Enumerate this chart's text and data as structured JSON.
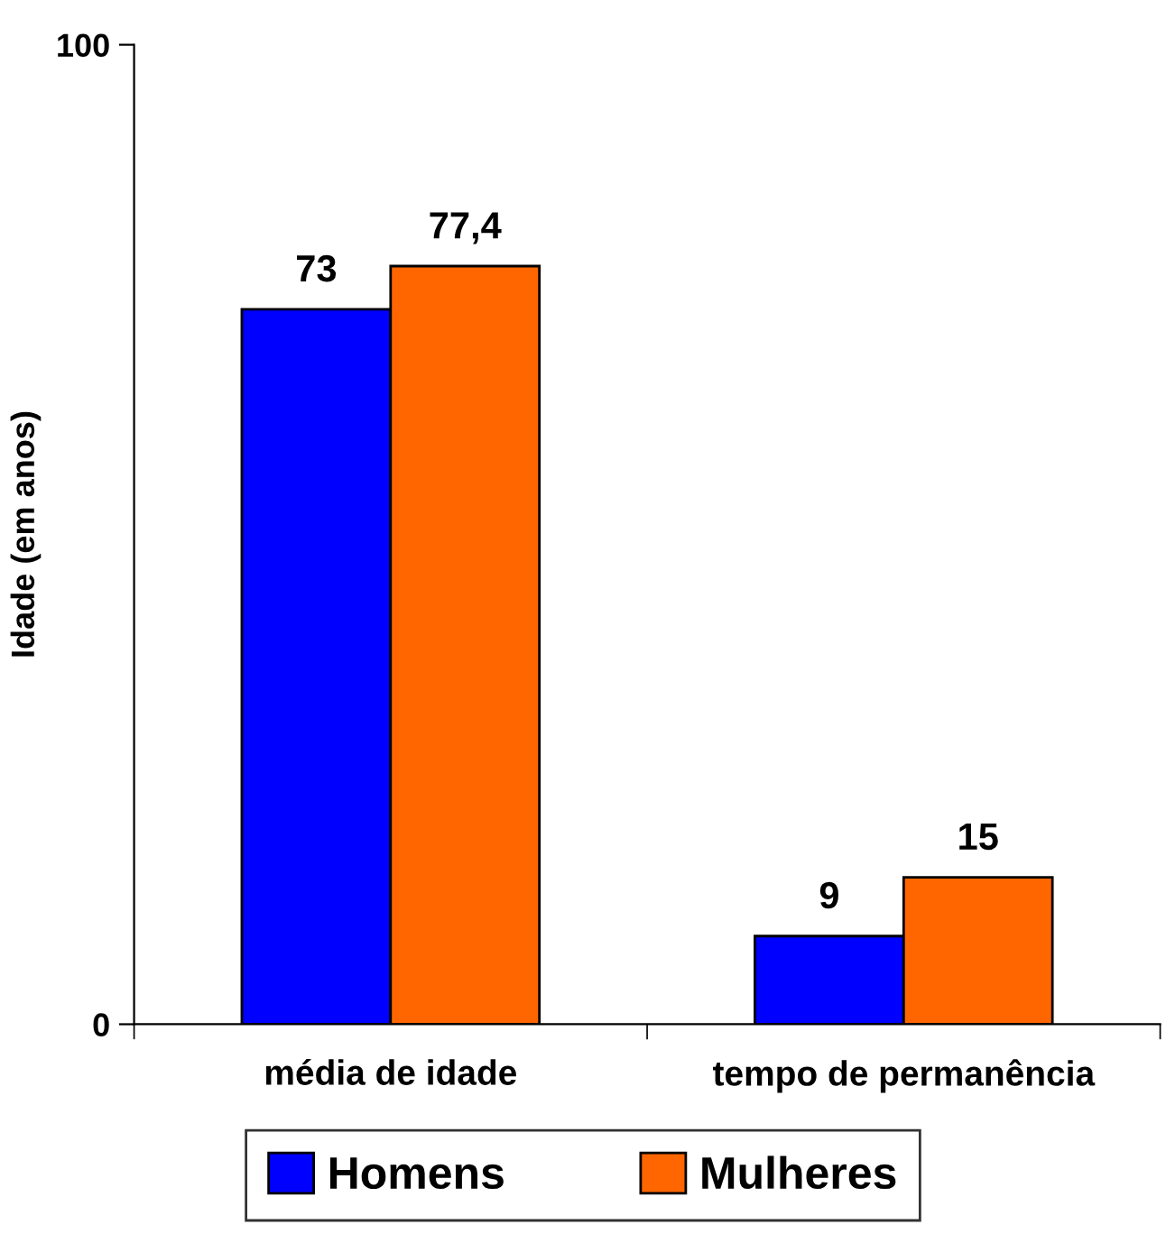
{
  "chart_data": {
    "type": "bar",
    "ylabel": "Idade (em anos)",
    "categories": [
      "média de idade",
      "tempo de permanência"
    ],
    "series": [
      {
        "name": "Homens",
        "color": "#0000ff",
        "values": [
          73,
          9
        ],
        "value_labels": [
          "73",
          "9"
        ]
      },
      {
        "name": "Mulheres",
        "color": "#ff6600",
        "values": [
          77.4,
          15
        ],
        "value_labels": [
          "77,4",
          "15"
        ]
      }
    ],
    "ylim": [
      0,
      100
    ],
    "yticks": [
      0,
      100
    ],
    "grid": false,
    "legend": "bottom"
  }
}
